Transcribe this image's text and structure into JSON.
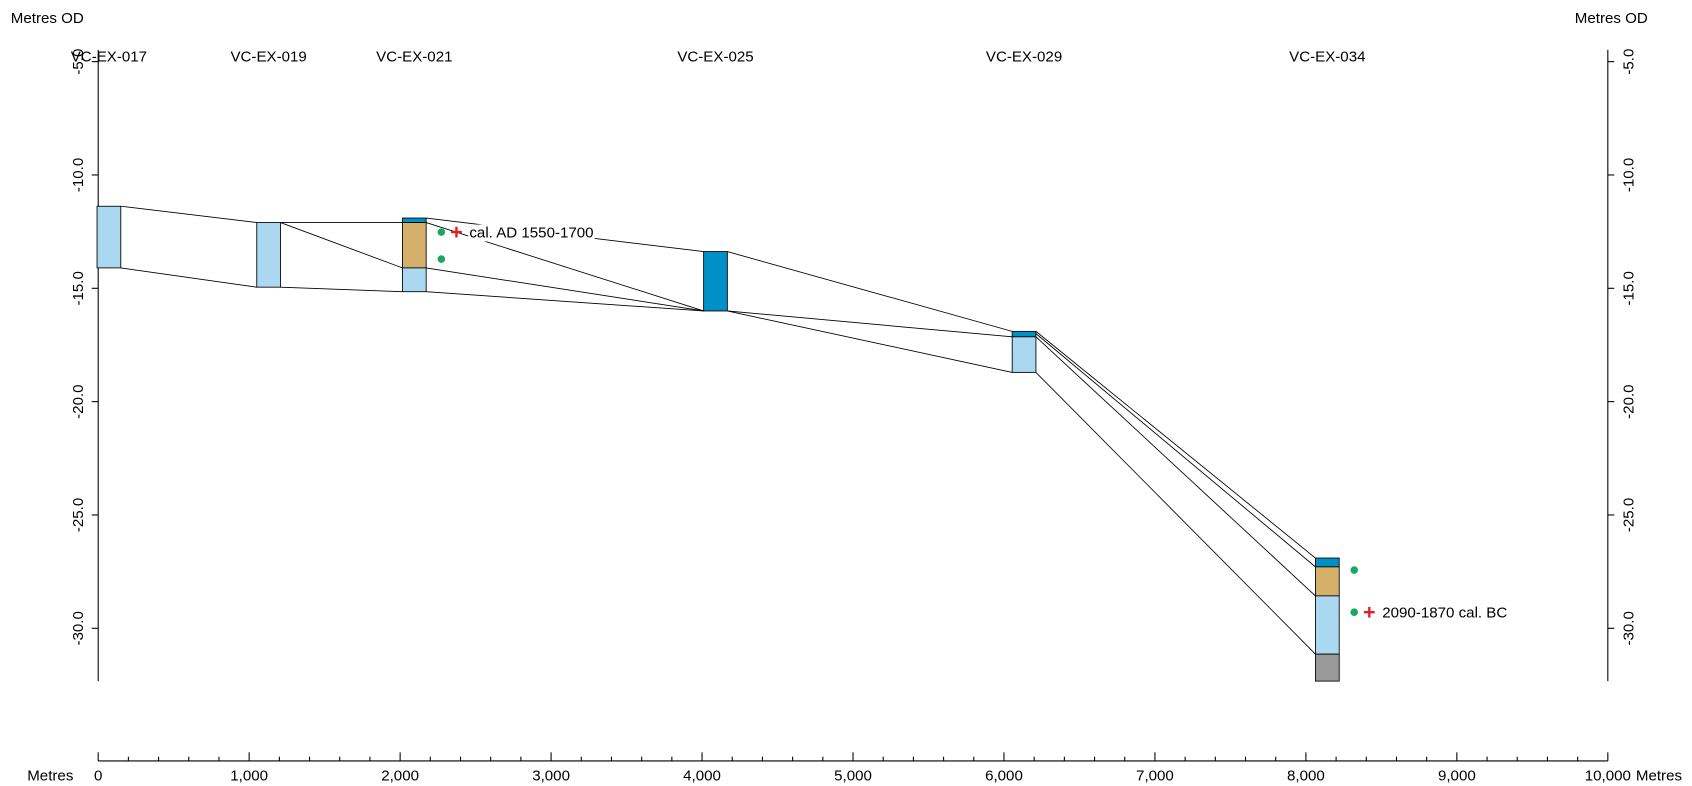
{
  "chart_data": {
    "type": "section",
    "y_label": "Metres OD",
    "x_label": "Metres",
    "xlim": [
      0,
      10000
    ],
    "ylim": [
      -32.33,
      -4.48
    ],
    "xticks": [
      0,
      {
        "value": 1000,
        "label": "1,000"
      },
      {
        "value": 2000,
        "label": "2,000"
      },
      {
        "value": 3000,
        "label": "3,000"
      },
      {
        "value": 4000,
        "label": "4,000"
      },
      {
        "value": 5000,
        "label": "5,000"
      },
      {
        "value": 6000,
        "label": "6,000"
      },
      {
        "value": 7000,
        "label": "7,000"
      },
      {
        "value": 8000,
        "label": "8,000"
      },
      {
        "value": 9000,
        "label": "9,000"
      },
      {
        "value": 10000,
        "label": "10,000"
      }
    ],
    "xminorticks": [
      200,
      400,
      600,
      800,
      1200,
      1400,
      1600,
      1800,
      2200,
      2400,
      2600,
      2800,
      3200,
      3400,
      3600,
      3800,
      4200,
      4400,
      4600,
      4800,
      5200,
      5400,
      5600,
      5800,
      6200,
      6400,
      6600,
      6800,
      7200,
      7400,
      7600,
      7800,
      8200,
      8400,
      8600,
      8800,
      9200,
      9400,
      9600,
      9800
    ],
    "yticks": [
      {
        "value": -5,
        "label": "-5.0"
      },
      {
        "value": -10,
        "label": "-10.0"
      },
      {
        "value": -15,
        "label": "-15.0"
      },
      {
        "value": -20,
        "label": "-20.0"
      },
      {
        "value": -25,
        "label": "-25.0"
      },
      {
        "value": -30,
        "label": "-30.0"
      }
    ],
    "cores": [
      {
        "name": "VC-EX-017",
        "x": 71,
        "layers": [
          {
            "top": -11.38,
            "bottom": -14.1,
            "color": "#aad8f0"
          }
        ]
      },
      {
        "name": "VC-EX-019",
        "x": 1129,
        "layers": [
          {
            "top": -12.1,
            "bottom": -14.95,
            "color": "#aad8f0"
          }
        ]
      },
      {
        "name": "VC-EX-021",
        "x": 2094,
        "layers": [
          {
            "top": -11.9,
            "bottom": -12.1,
            "color": "#0090c8"
          },
          {
            "top": -12.1,
            "bottom": -14.1,
            "color": "#d4b06a"
          },
          {
            "top": -14.1,
            "bottom": -15.15,
            "color": "#aad8f0"
          }
        ]
      },
      {
        "name": "VC-EX-025",
        "x": 4089,
        "layers": [
          {
            "top": -13.38,
            "bottom": -16.0,
            "color": "#0090c8"
          }
        ]
      },
      {
        "name": "VC-EX-029",
        "x": 6133,
        "layers": [
          {
            "top": -16.9,
            "bottom": -17.14,
            "color": "#0090c8"
          },
          {
            "top": -17.14,
            "bottom": -18.71,
            "color": "#aad8f0"
          }
        ]
      },
      {
        "name": "VC-EX-034",
        "x": 8142,
        "layers": [
          {
            "top": -26.9,
            "bottom": -27.29,
            "color": "#0090c8"
          },
          {
            "top": -27.29,
            "bottom": -28.57,
            "color": "#d4b06a"
          },
          {
            "top": -28.57,
            "bottom": -31.14,
            "color": "#aad8f0"
          },
          {
            "top": -31.14,
            "bottom": -32.33,
            "color": "#999999"
          }
        ]
      }
    ],
    "lines": [
      {
        "x": [
          71,
          1129
        ],
        "y": [
          -11.38,
          -12.1
        ]
      },
      {
        "x": [
          71,
          1129
        ],
        "y": [
          -14.1,
          -14.95
        ]
      },
      {
        "x": [
          1129,
          2094
        ],
        "y": [
          -12.1,
          -12.1
        ]
      },
      {
        "x": [
          1129,
          2094
        ],
        "y": [
          -12.1,
          -14.1
        ]
      },
      {
        "x": [
          1129,
          2094
        ],
        "y": [
          -14.95,
          -15.15
        ]
      },
      {
        "x": [
          2094,
          4089
        ],
        "y": [
          -11.9,
          -13.38
        ]
      },
      {
        "x": [
          2094,
          4089
        ],
        "y": [
          -12.1,
          -16.0
        ]
      },
      {
        "x": [
          2094,
          4089
        ],
        "y": [
          -14.1,
          -16.0
        ]
      },
      {
        "x": [
          2094,
          4089
        ],
        "y": [
          -15.15,
          -16.0
        ]
      },
      {
        "x": [
          4089,
          6133
        ],
        "y": [
          -13.38,
          -16.9
        ]
      },
      {
        "x": [
          4089,
          6133
        ],
        "y": [
          -16.0,
          -17.14
        ]
      },
      {
        "x": [
          4089,
          6133
        ],
        "y": [
          -16.0,
          -18.71
        ]
      },
      {
        "x": [
          6133,
          8142
        ],
        "y": [
          -16.9,
          -26.9
        ]
      },
      {
        "x": [
          6133,
          8142
        ],
        "y": [
          -17.0,
          -27.29
        ]
      },
      {
        "x": [
          6133,
          8142
        ],
        "y": [
          -17.14,
          -28.57
        ]
      },
      {
        "x": [
          6133,
          8142
        ],
        "y": [
          -18.71,
          -31.14
        ]
      }
    ],
    "samples": [
      {
        "x": 2273,
        "y": -12.52,
        "color": "#1aa860"
      },
      {
        "x": 2273,
        "y": -13.71,
        "color": "#1aa860"
      },
      {
        "x": 8320,
        "y": -27.43,
        "color": "#1aa860"
      },
      {
        "x": 8320,
        "y": -29.29,
        "color": "#1aa860"
      }
    ],
    "dates": [
      {
        "x": 2373,
        "y": -12.52,
        "label": "cal. AD 1550-1700",
        "color": "#e02020"
      },
      {
        "x": 8420,
        "y": -29.29,
        "label": "2090-1870 cal. BC",
        "color": "#e02020"
      }
    ]
  }
}
